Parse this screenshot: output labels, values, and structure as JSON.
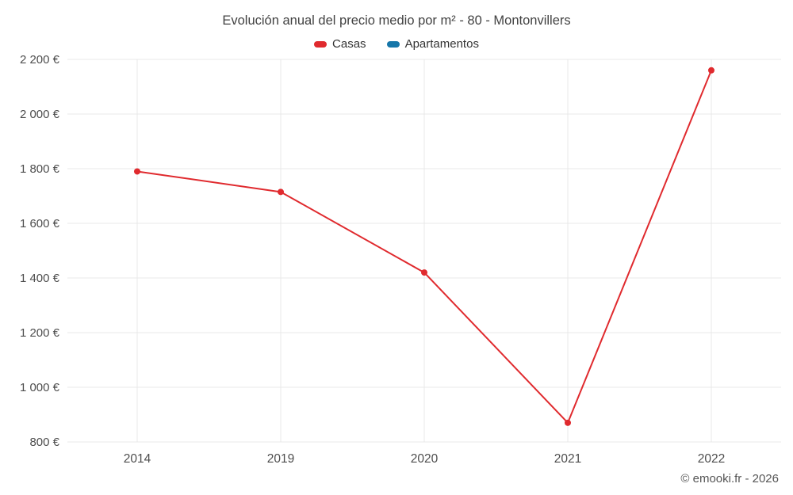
{
  "chart_data": {
    "type": "line",
    "title": "Evolución anual del precio medio por m² - 80 - Montonvillers",
    "categories": [
      "2014",
      "2019",
      "2020",
      "2021",
      "2022"
    ],
    "series": [
      {
        "name": "Casas",
        "color": "#e02a2e",
        "values": [
          1790,
          1715,
          1420,
          870,
          2160
        ]
      },
      {
        "name": "Apartamentos",
        "color": "#1676a9",
        "values": []
      }
    ],
    "ylim": [
      800,
      2200
    ],
    "y_ticks": [
      {
        "value": 800,
        "label": "800 €"
      },
      {
        "value": 1000,
        "label": "1 000 €"
      },
      {
        "value": 1200,
        "label": "1 200 €"
      },
      {
        "value": 1400,
        "label": "1 400 €"
      },
      {
        "value": 1600,
        "label": "1 600 €"
      },
      {
        "value": 1800,
        "label": "1 800 €"
      },
      {
        "value": 2000,
        "label": "2 000 €"
      },
      {
        "value": 2200,
        "label": "2 200 €"
      }
    ],
    "grid": true,
    "legend_position": "top",
    "xlabel": "",
    "ylabel": ""
  },
  "footer": {
    "credit": "© emooki.fr - 2026"
  }
}
